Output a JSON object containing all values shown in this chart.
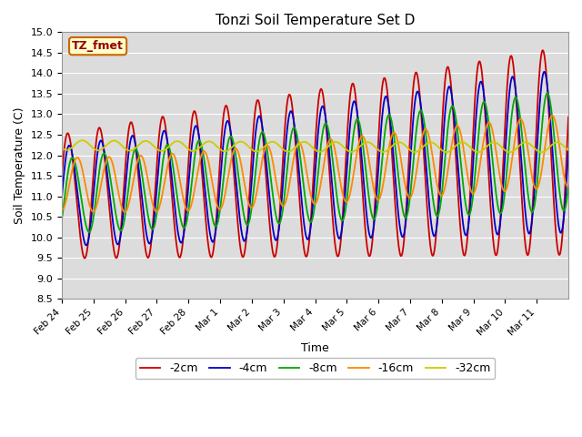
{
  "title": "Tonzi Soil Temperature Set D",
  "xlabel": "Time",
  "ylabel": "Soil Temperature (C)",
  "ylim": [
    8.5,
    15.0
  ],
  "yticks": [
    8.5,
    9.0,
    9.5,
    10.0,
    10.5,
    11.0,
    11.5,
    12.0,
    12.5,
    13.0,
    13.5,
    14.0,
    14.5,
    15.0
  ],
  "xtick_labels": [
    "Feb 24",
    "Feb 25",
    "Feb 26",
    "Feb 27",
    "Feb 28",
    "Mar 1",
    "Mar 2",
    "Mar 3",
    "Mar 4",
    "Mar 5",
    "Mar 6",
    "Mar 7",
    "Mar 8",
    "Mar 9",
    "Mar 10",
    "Mar 11"
  ],
  "bg_color": "#dcdcdc",
  "label_box_bg": "#ffffcc",
  "label_box_edge": "#cc6600",
  "label_box_text": "#990000",
  "lines": {
    "-2cm": {
      "color": "#cc0000",
      "lw": 1.3
    },
    "-4cm": {
      "color": "#0000cc",
      "lw": 1.3
    },
    "-8cm": {
      "color": "#00aa00",
      "lw": 1.3
    },
    "-16cm": {
      "color": "#ff8800",
      "lw": 1.3
    },
    "-32cm": {
      "color": "#cccc00",
      "lw": 1.3
    }
  }
}
